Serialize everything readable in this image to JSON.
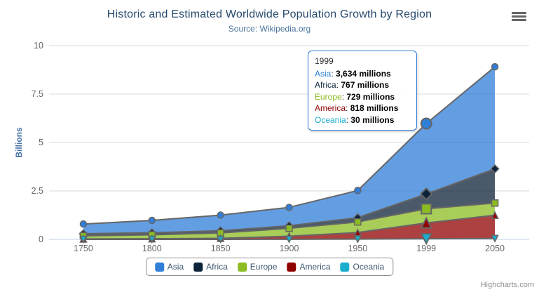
{
  "chart_data": {
    "type": "area",
    "stacking": "normal",
    "title": "Historic and Estimated Worldwide Population Growth by Region",
    "subtitle": "Source: Wikipedia.org",
    "categories": [
      "1750",
      "1800",
      "1850",
      "1900",
      "1950",
      "1999",
      "2050"
    ],
    "y_axis": {
      "title": "Billions",
      "tick_labels": [
        "0",
        "2.5",
        "5",
        "7.5",
        "10"
      ],
      "ticks_billions": [
        0,
        2.5,
        5,
        7.5,
        10
      ],
      "max_millions": 10000
    },
    "unit": "millions",
    "series": [
      {
        "name": "Asia",
        "color": "#2f7ed8",
        "marker": "circle",
        "values": [
          502,
          635,
          809,
          947,
          1402,
          3634,
          5268
        ]
      },
      {
        "name": "Africa",
        "color": "#0d233a",
        "marker": "diamond",
        "values": [
          106,
          107,
          111,
          133,
          221,
          767,
          1766
        ]
      },
      {
        "name": "Europe",
        "color": "#8bbc21",
        "marker": "square",
        "values": [
          163,
          203,
          276,
          408,
          547,
          729,
          628
        ]
      },
      {
        "name": "America",
        "color": "#910000",
        "marker": "triangle",
        "values": [
          18,
          31,
          54,
          156,
          339,
          818,
          1201
        ]
      },
      {
        "name": "Oceania",
        "color": "#1aadce",
        "marker": "triangle-down",
        "values": [
          2,
          2,
          2,
          6,
          13,
          30,
          46
        ]
      }
    ],
    "legend_position": "bottom-center",
    "grid": "horizontal"
  },
  "tooltip": {
    "header": "1999",
    "point_index": 5,
    "border_color": "#2f7ed8",
    "rows": [
      {
        "name": "Asia",
        "color": "#2f7ed8",
        "value": "3,634 millions"
      },
      {
        "name": "Africa",
        "color": "#0d233a",
        "value": "767 millions"
      },
      {
        "name": "Europe",
        "color": "#8bbc21",
        "value": "729 millions"
      },
      {
        "name": "America",
        "color": "#910000",
        "value": "818 millions"
      },
      {
        "name": "Oceania",
        "color": "#1aadce",
        "value": "30 millions"
      }
    ]
  },
  "credits": {
    "text": "Highcharts.com"
  },
  "colors": {
    "title": "#274b6d",
    "subtitle": "#4d759e",
    "axis_label": "#666666",
    "y_axis_title": "#4572a7",
    "grid_line": "#d8d8d8",
    "x_axis_line": "#c0d0e0",
    "series_outline": "#666666",
    "fill_opacity": 0.75,
    "legend_border": "#909090",
    "legend_text": "#3e576f"
  }
}
